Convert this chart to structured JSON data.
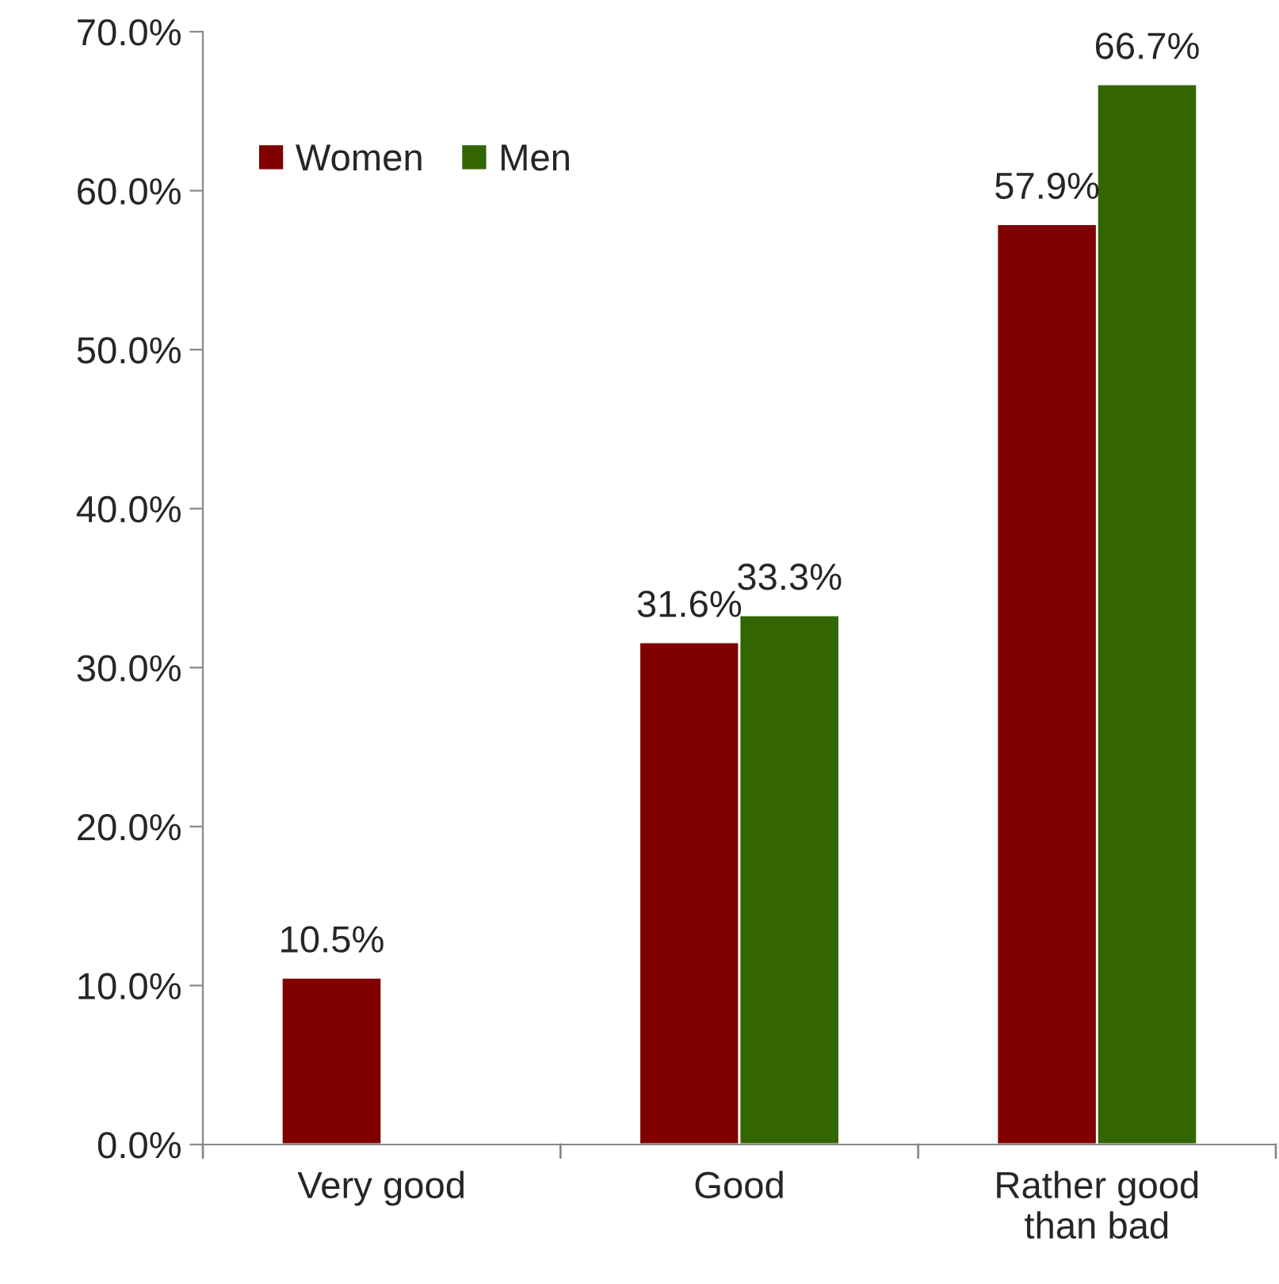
{
  "chart_data": {
    "type": "bar",
    "categories": [
      "Very good",
      "Good",
      "Rather good\nthan bad"
    ],
    "series": [
      {
        "name": "Women",
        "color": "#800000",
        "values": [
          10.5,
          31.6,
          57.9
        ],
        "value_labels": [
          "10.5%",
          "31.6%",
          "57.9%"
        ]
      },
      {
        "name": "Men",
        "color": "#336600",
        "values": [
          null,
          33.3,
          66.7
        ],
        "value_labels": [
          null,
          "33.3%",
          "66.7%"
        ]
      }
    ],
    "ylim": [
      0,
      70
    ],
    "yticks": [
      {
        "value": 0,
        "label": "0.0%"
      },
      {
        "value": 10,
        "label": "10.0%"
      },
      {
        "value": 20,
        "label": "20.0%"
      },
      {
        "value": 30,
        "label": "30.0%"
      },
      {
        "value": 40,
        "label": "40.0%"
      },
      {
        "value": 50,
        "label": "50.0%"
      },
      {
        "value": 60,
        "label": "60.0%"
      },
      {
        "value": 70,
        "label": "70.0%"
      }
    ],
    "grid": false,
    "legend": "top left"
  }
}
